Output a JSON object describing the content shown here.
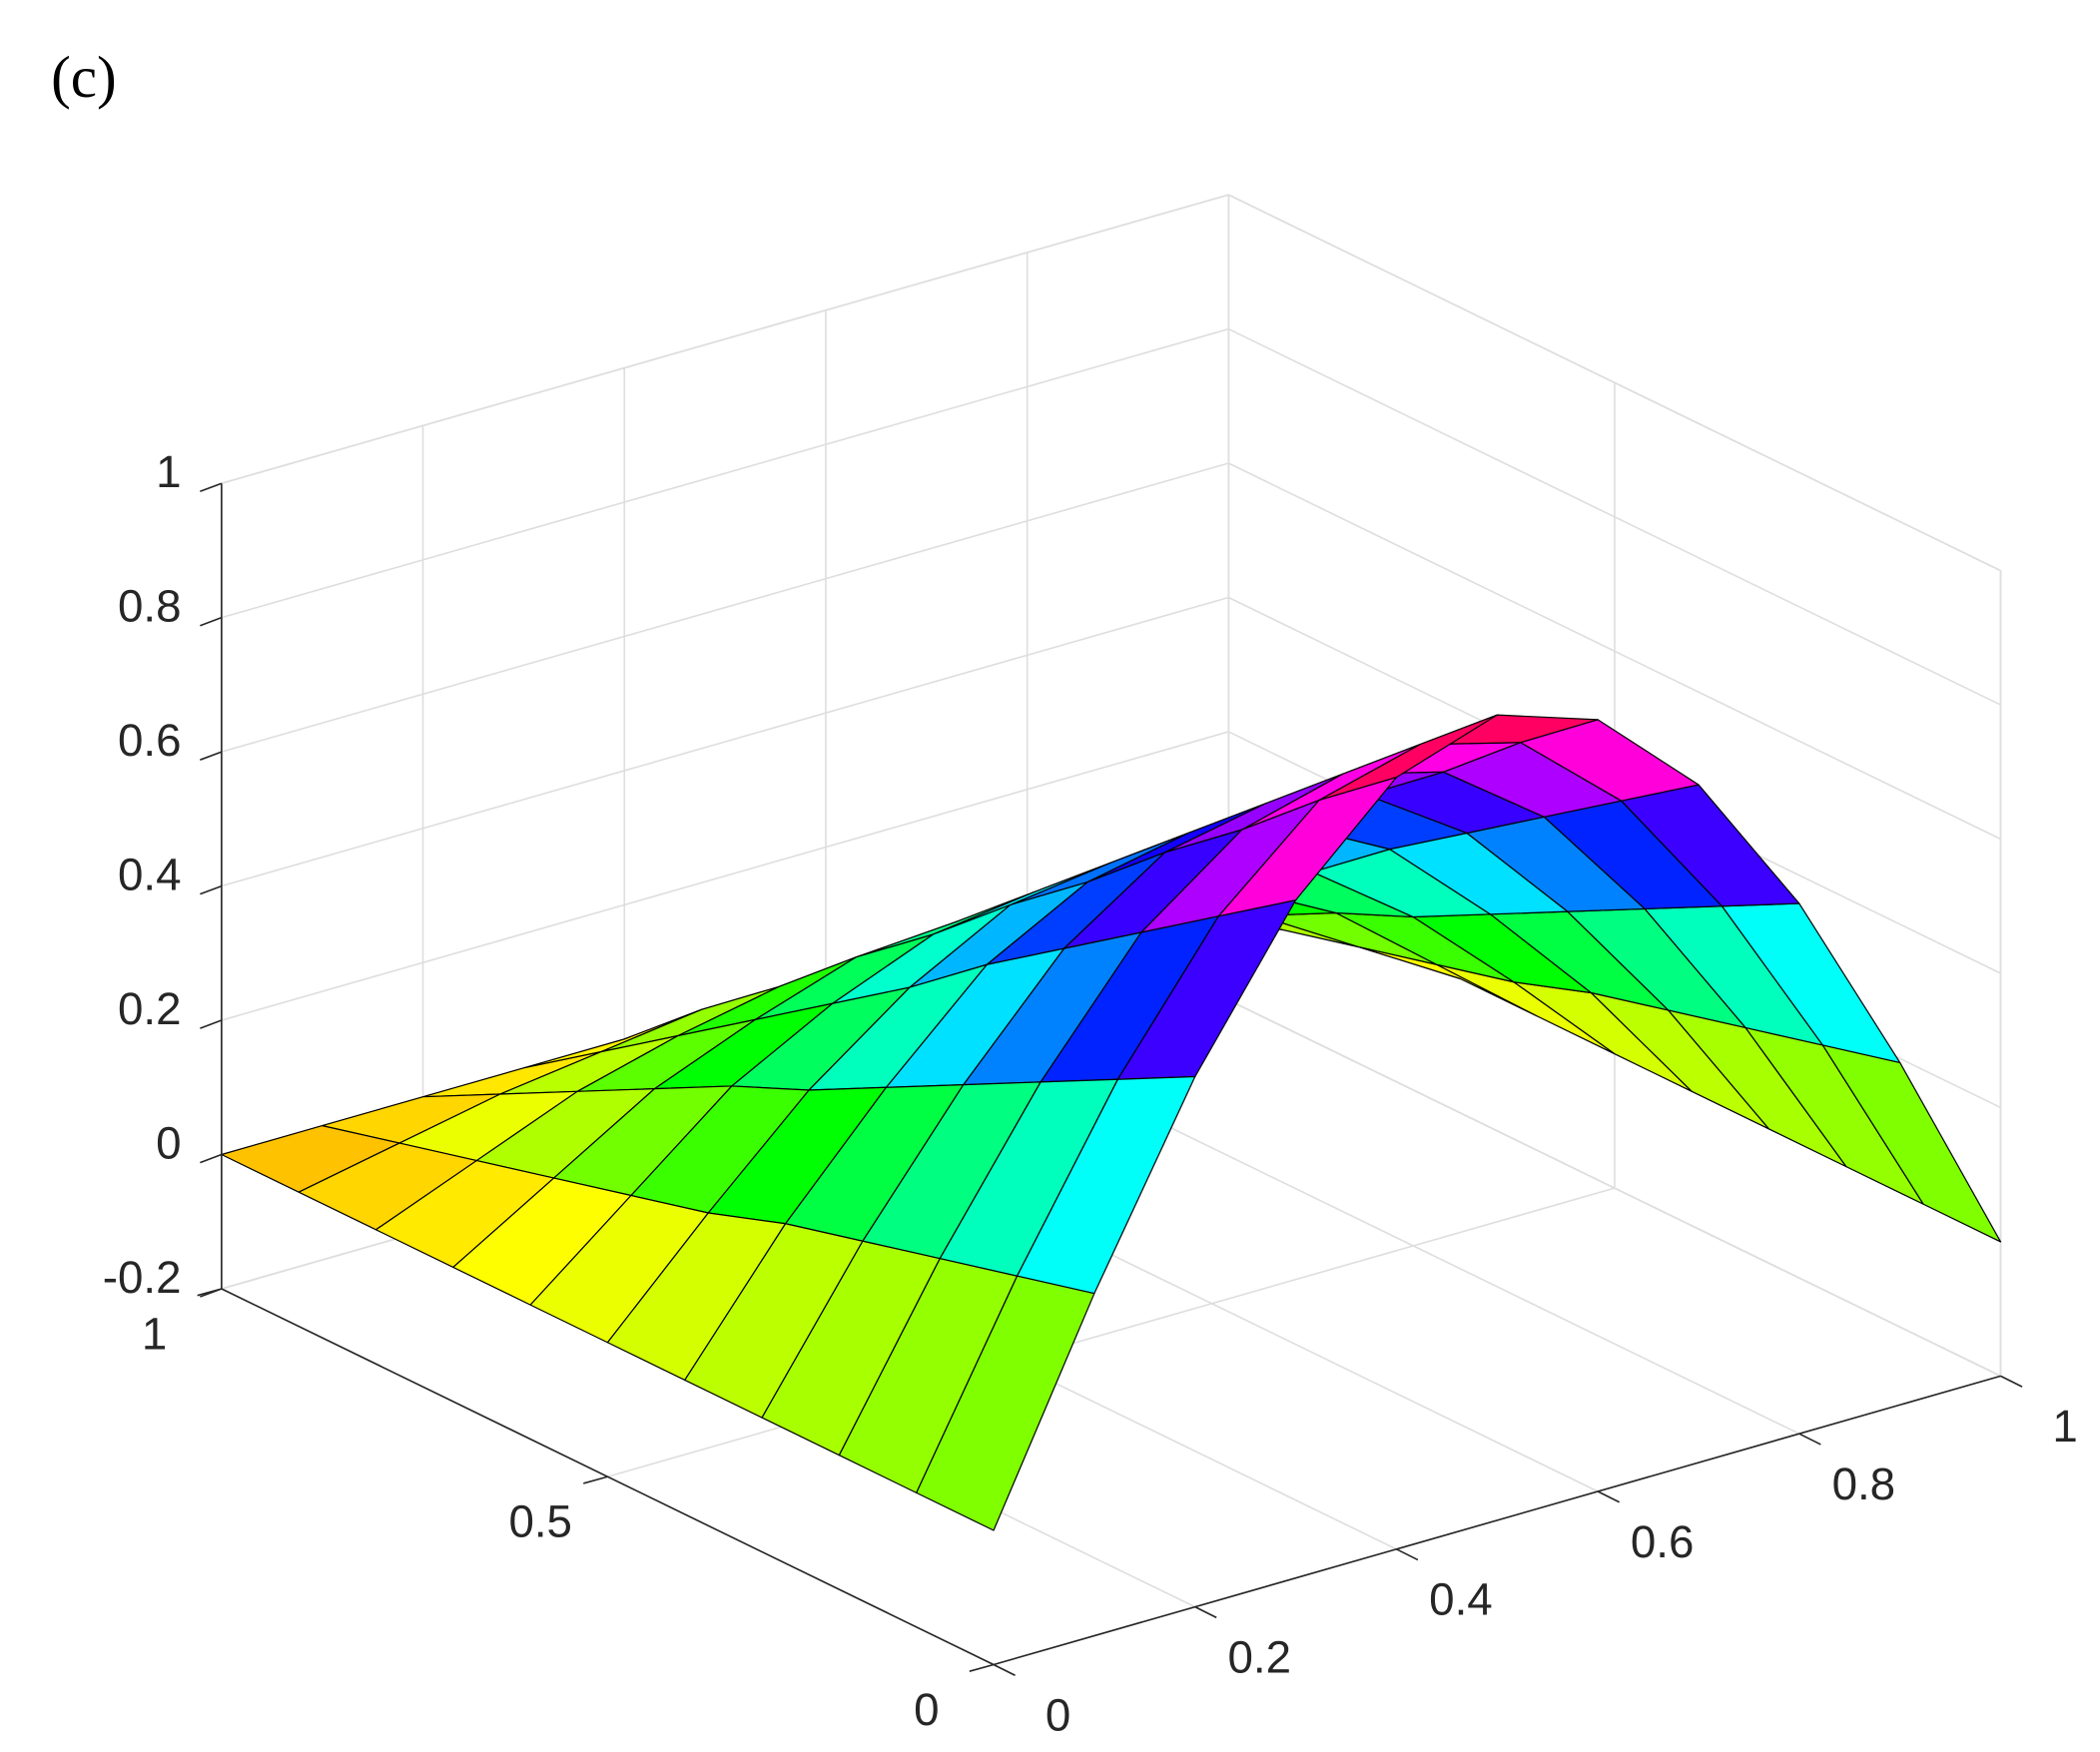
{
  "label": "(c)",
  "chart_data": {
    "type": "surface",
    "colormap": "hsv",
    "grid": true,
    "edge_color": "#000000",
    "x": [
      0,
      0.1,
      0.2,
      0.3,
      0.4,
      0.5,
      0.6,
      0.7,
      0.8,
      0.9,
      1
    ],
    "y": [
      0,
      0.1,
      0.2,
      0.3,
      0.4,
      0.5,
      0.6,
      0.7,
      0.8,
      0.9,
      1
    ],
    "z": [
      [
        0,
        0.31,
        0.59,
        0.81,
        0.95,
        1,
        0.95,
        0.81,
        0.59,
        0.31,
        0
      ],
      [
        0,
        0.28,
        0.53,
        0.73,
        0.86,
        0.9,
        0.86,
        0.73,
        0.53,
        0.28,
        0
      ],
      [
        0,
        0.25,
        0.47,
        0.65,
        0.76,
        0.8,
        0.76,
        0.65,
        0.47,
        0.25,
        0
      ],
      [
        0,
        0.22,
        0.41,
        0.57,
        0.67,
        0.7,
        0.67,
        0.57,
        0.41,
        0.22,
        0
      ],
      [
        0,
        0.19,
        0.35,
        0.49,
        0.57,
        0.6,
        0.57,
        0.49,
        0.35,
        0.19,
        0
      ],
      [
        0,
        0.15,
        0.29,
        0.4,
        0.48,
        0.5,
        0.48,
        0.4,
        0.29,
        0.15,
        0
      ],
      [
        0,
        0.12,
        0.24,
        0.32,
        0.38,
        0.4,
        0.38,
        0.32,
        0.24,
        0.12,
        0
      ],
      [
        0,
        0.09,
        0.18,
        0.24,
        0.29,
        0.3,
        0.29,
        0.24,
        0.18,
        0.09,
        0
      ],
      [
        0,
        0.06,
        0.12,
        0.16,
        0.19,
        0.2,
        0.19,
        0.16,
        0.12,
        0.06,
        0
      ],
      [
        0,
        0.03,
        0.06,
        0.08,
        0.1,
        0.1,
        0.1,
        0.08,
        0.06,
        0.03,
        0
      ],
      [
        0,
        0,
        0,
        0,
        0,
        0,
        0,
        0,
        0,
        0,
        0
      ]
    ],
    "xlim": [
      0,
      1
    ],
    "ylim": [
      0,
      1
    ],
    "zlim": [
      -0.2,
      1
    ],
    "xticks": [
      0,
      0.2,
      0.4,
      0.6,
      0.8,
      1
    ],
    "yticks": [
      0,
      0.5,
      1
    ],
    "zticks": [
      -0.2,
      0,
      0.2,
      0.4,
      0.6,
      0.8,
      1
    ]
  }
}
